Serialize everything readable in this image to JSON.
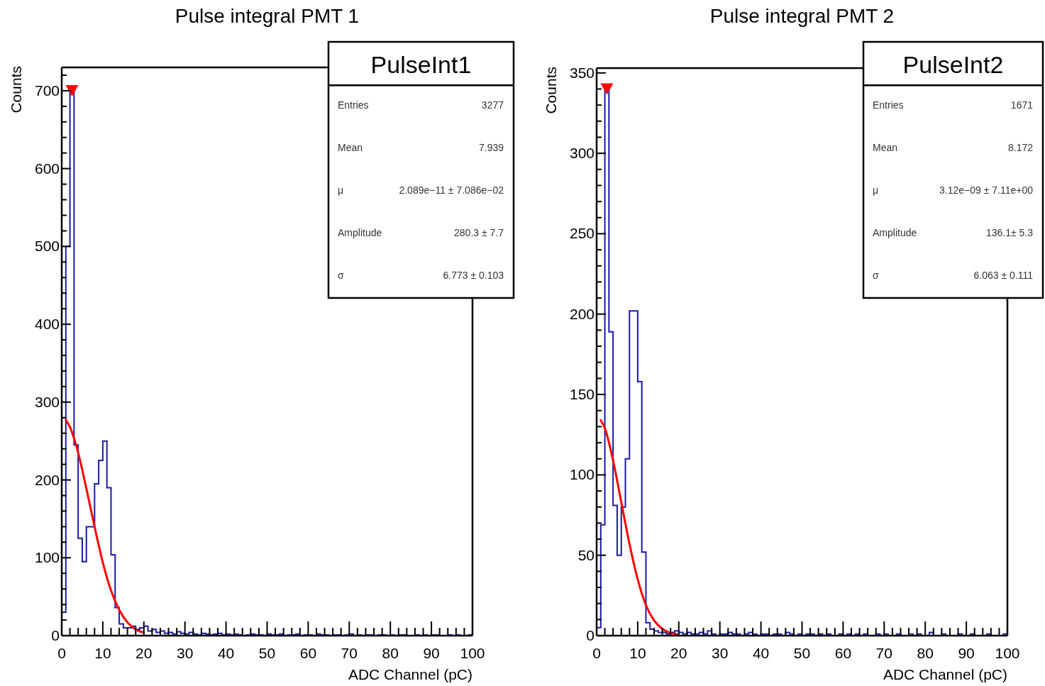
{
  "chart_data": [
    {
      "type": "histogram",
      "title": "Pulse integral PMT 1",
      "xlabel": "ADC Channel (pC)",
      "ylabel": "Counts",
      "bins": [
        0,
        1,
        2,
        3,
        4,
        5,
        6,
        7,
        8,
        9,
        10,
        11,
        12,
        13,
        14,
        15,
        16,
        17,
        18,
        19,
        20,
        21,
        22,
        23,
        24,
        25,
        26,
        27,
        28,
        29,
        30,
        31,
        32,
        33,
        34,
        35,
        36,
        37,
        38,
        39,
        40,
        41,
        42,
        43,
        44,
        45,
        46,
        47,
        48,
        49,
        50,
        51,
        52,
        53,
        54,
        55,
        56,
        57,
        58,
        59,
        60,
        61,
        62,
        63,
        64,
        65,
        66,
        67,
        68,
        69,
        70,
        71,
        72,
        73,
        74,
        75,
        76,
        77,
        78,
        79,
        80,
        81,
        82,
        83,
        84,
        85,
        86,
        87,
        88,
        89,
        90,
        91,
        92,
        93,
        94,
        95,
        96,
        97,
        98,
        99,
        100
      ],
      "series": [
        {
          "color": "#1a1aa6",
          "values": [
            30,
            500,
            700,
            245,
            125,
            95,
            140,
            140,
            195,
            225,
            250,
            190,
            104,
            36,
            15,
            10,
            10,
            12,
            8,
            10,
            12,
            6,
            8,
            4,
            6,
            3,
            4,
            2,
            5,
            3,
            2,
            4,
            2,
            1,
            3,
            2,
            1,
            2,
            3,
            1,
            2,
            1,
            2,
            1,
            0,
            1,
            2,
            1,
            1,
            0,
            2,
            1,
            1,
            2,
            0,
            1,
            1,
            2,
            0,
            1,
            1,
            0,
            2,
            1,
            1,
            0,
            1,
            1,
            0,
            1,
            2,
            0,
            1,
            0,
            1,
            1,
            0,
            1,
            1,
            0,
            1,
            0,
            1,
            1,
            0,
            0,
            1,
            0,
            1,
            0,
            1,
            1,
            0,
            0,
            1,
            0,
            1,
            0,
            0,
            1
          ]
        },
        {
          "type": "line",
          "color": "#ff0000",
          "x": [
            1,
            2,
            4,
            6,
            8,
            10,
            12,
            14,
            16,
            18,
            20
          ],
          "values": [
            277,
            268,
            235,
            189,
            140,
            94,
            58,
            33,
            17,
            8,
            4
          ]
        },
        {
          "type": "scatter",
          "color": "#ff0000",
          "marker": "triangle",
          "x": [
            2.5
          ],
          "values": [
            700
          ]
        }
      ],
      "xlim": [
        0,
        100
      ],
      "ylim": [
        0,
        730
      ],
      "xticks": [
        0,
        {
          "value": 2,
          "label": null
        },
        {
          "value": 4,
          "label": null
        },
        {
          "value": 6,
          "label": null
        },
        {
          "value": 8,
          "label": null
        },
        10,
        {
          "value": 12,
          "label": null
        },
        {
          "value": 14,
          "label": null
        },
        {
          "value": 16,
          "label": null
        },
        {
          "value": 18,
          "label": null
        },
        20,
        {
          "value": 22,
          "label": null
        },
        {
          "value": 24,
          "label": null
        },
        {
          "value": 26,
          "label": null
        },
        {
          "value": 28,
          "label": null
        },
        30,
        {
          "value": 32,
          "label": null
        },
        {
          "value": 34,
          "label": null
        },
        {
          "value": 36,
          "label": null
        },
        {
          "value": 38,
          "label": null
        },
        40,
        {
          "value": 42,
          "label": null
        },
        {
          "value": 44,
          "label": null
        },
        {
          "value": 46,
          "label": null
        },
        {
          "value": 48,
          "label": null
        },
        50,
        {
          "value": 52,
          "label": null
        },
        {
          "value": 54,
          "label": null
        },
        {
          "value": 56,
          "label": null
        },
        {
          "value": 58,
          "label": null
        },
        60,
        {
          "value": 62,
          "label": null
        },
        {
          "value": 64,
          "label": null
        },
        {
          "value": 66,
          "label": null
        },
        {
          "value": 68,
          "label": null
        },
        70,
        {
          "value": 72,
          "label": null
        },
        {
          "value": 74,
          "label": null
        },
        {
          "value": 76,
          "label": null
        },
        {
          "value": 78,
          "label": null
        },
        80,
        {
          "value": 82,
          "label": null
        },
        {
          "value": 84,
          "label": null
        },
        {
          "value": 86,
          "label": null
        },
        {
          "value": 88,
          "label": null
        },
        90,
        {
          "value": 92,
          "label": null
        },
        {
          "value": 94,
          "label": null
        },
        {
          "value": 96,
          "label": null
        },
        {
          "value": 98,
          "label": null
        },
        100
      ],
      "yticks": [
        0,
        100,
        200,
        300,
        400,
        500,
        600,
        700
      ],
      "annotations": [
        "PulseInt1",
        "Entries",
        "3277",
        "Mean",
        "7.939",
        "μ",
        "2.089e−11 ± 7.086e−02",
        "Amplitude",
        "280.3 ± 7.7",
        "σ",
        "6.773 ± 0.103"
      ]
    },
    {
      "type": "histogram",
      "title": "Pulse integral PMT 2",
      "xlabel": "ADC Channel (pC)",
      "ylabel": "Counts",
      "bins": [
        0,
        1,
        2,
        3,
        4,
        5,
        6,
        7,
        8,
        9,
        10,
        11,
        12,
        13,
        14,
        15,
        16,
        17,
        18,
        19,
        20,
        21,
        22,
        23,
        24,
        25,
        26,
        27,
        28,
        29,
        30,
        31,
        32,
        33,
        34,
        35,
        36,
        37,
        38,
        39,
        40,
        41,
        42,
        43,
        44,
        45,
        46,
        47,
        48,
        49,
        50,
        51,
        52,
        53,
        54,
        55,
        56,
        57,
        58,
        59,
        60,
        61,
        62,
        63,
        64,
        65,
        66,
        67,
        68,
        69,
        70,
        71,
        72,
        73,
        74,
        75,
        76,
        77,
        78,
        79,
        80,
        81,
        82,
        83,
        84,
        85,
        86,
        87,
        88,
        89,
        90,
        91,
        92,
        93,
        94,
        95,
        96,
        97,
        98,
        99,
        100
      ],
      "series": [
        {
          "color": "#1a1aa6",
          "values": [
            5,
            69,
            340,
            189,
            81,
            50,
            80,
            110,
            202,
            202,
            158,
            52,
            8,
            4,
            3,
            2,
            2,
            1,
            2,
            3,
            2,
            1,
            2,
            1,
            1,
            2,
            1,
            3,
            1,
            0,
            1,
            1,
            2,
            1,
            1,
            0,
            1,
            2,
            1,
            0,
            1,
            1,
            0,
            1,
            1,
            0,
            2,
            1,
            0,
            1,
            0,
            1,
            1,
            0,
            1,
            0,
            1,
            0,
            0,
            1,
            0,
            1,
            0,
            1,
            0,
            1,
            0,
            0,
            1,
            0,
            1,
            0,
            0,
            1,
            0,
            0,
            1,
            0,
            1,
            0,
            0,
            2,
            0,
            0,
            1,
            0,
            0,
            0,
            1,
            0,
            0,
            1,
            0,
            0,
            0,
            1,
            0,
            0,
            0,
            1
          ]
        },
        {
          "type": "line",
          "color": "#ff0000",
          "x": [
            1,
            2,
            4,
            6,
            8,
            10,
            12,
            14,
            16,
            18,
            20
          ],
          "values": [
            134,
            129,
            109,
            83,
            57,
            35,
            19,
            9.4,
            4.2,
            1.7,
            0.6
          ]
        },
        {
          "type": "scatter",
          "color": "#ff0000",
          "marker": "triangle",
          "x": [
            2.5
          ],
          "values": [
            340
          ]
        }
      ],
      "xlim": [
        0,
        100
      ],
      "ylim": [
        0,
        353
      ],
      "xticks": [
        0,
        {
          "value": 2,
          "label": null
        },
        {
          "value": 4,
          "label": null
        },
        {
          "value": 6,
          "label": null
        },
        {
          "value": 8,
          "label": null
        },
        10,
        {
          "value": 12,
          "label": null
        },
        {
          "value": 14,
          "label": null
        },
        {
          "value": 16,
          "label": null
        },
        {
          "value": 18,
          "label": null
        },
        20,
        {
          "value": 22,
          "label": null
        },
        {
          "value": 24,
          "label": null
        },
        {
          "value": 26,
          "label": null
        },
        {
          "value": 28,
          "label": null
        },
        30,
        {
          "value": 32,
          "label": null
        },
        {
          "value": 34,
          "label": null
        },
        {
          "value": 36,
          "label": null
        },
        {
          "value": 38,
          "label": null
        },
        40,
        {
          "value": 42,
          "label": null
        },
        {
          "value": 44,
          "label": null
        },
        {
          "value": 46,
          "label": null
        },
        {
          "value": 48,
          "label": null
        },
        50,
        {
          "value": 52,
          "label": null
        },
        {
          "value": 54,
          "label": null
        },
        {
          "value": 56,
          "label": null
        },
        {
          "value": 58,
          "label": null
        },
        60,
        {
          "value": 62,
          "label": null
        },
        {
          "value": 64,
          "label": null
        },
        {
          "value": 66,
          "label": null
        },
        {
          "value": 68,
          "label": null
        },
        70,
        {
          "value": 72,
          "label": null
        },
        {
          "value": 74,
          "label": null
        },
        {
          "value": 76,
          "label": null
        },
        {
          "value": 78,
          "label": null
        },
        80,
        {
          "value": 82,
          "label": null
        },
        {
          "value": 84,
          "label": null
        },
        {
          "value": 86,
          "label": null
        },
        {
          "value": 88,
          "label": null
        },
        90,
        {
          "value": 92,
          "label": null
        },
        {
          "value": 94,
          "label": null
        },
        {
          "value": 96,
          "label": null
        },
        {
          "value": 98,
          "label": null
        },
        100
      ],
      "yticks": [
        0,
        50,
        100,
        150,
        200,
        250,
        300,
        350
      ],
      "annotations": [
        "PulseInt2",
        "Entries",
        "1671",
        "Mean",
        "8.172",
        "μ",
        "3.12e−09 ± 7.11e+00",
        "Amplitude",
        "136.1± 5.3",
        "σ",
        "6.063 ± 0.111"
      ]
    }
  ]
}
